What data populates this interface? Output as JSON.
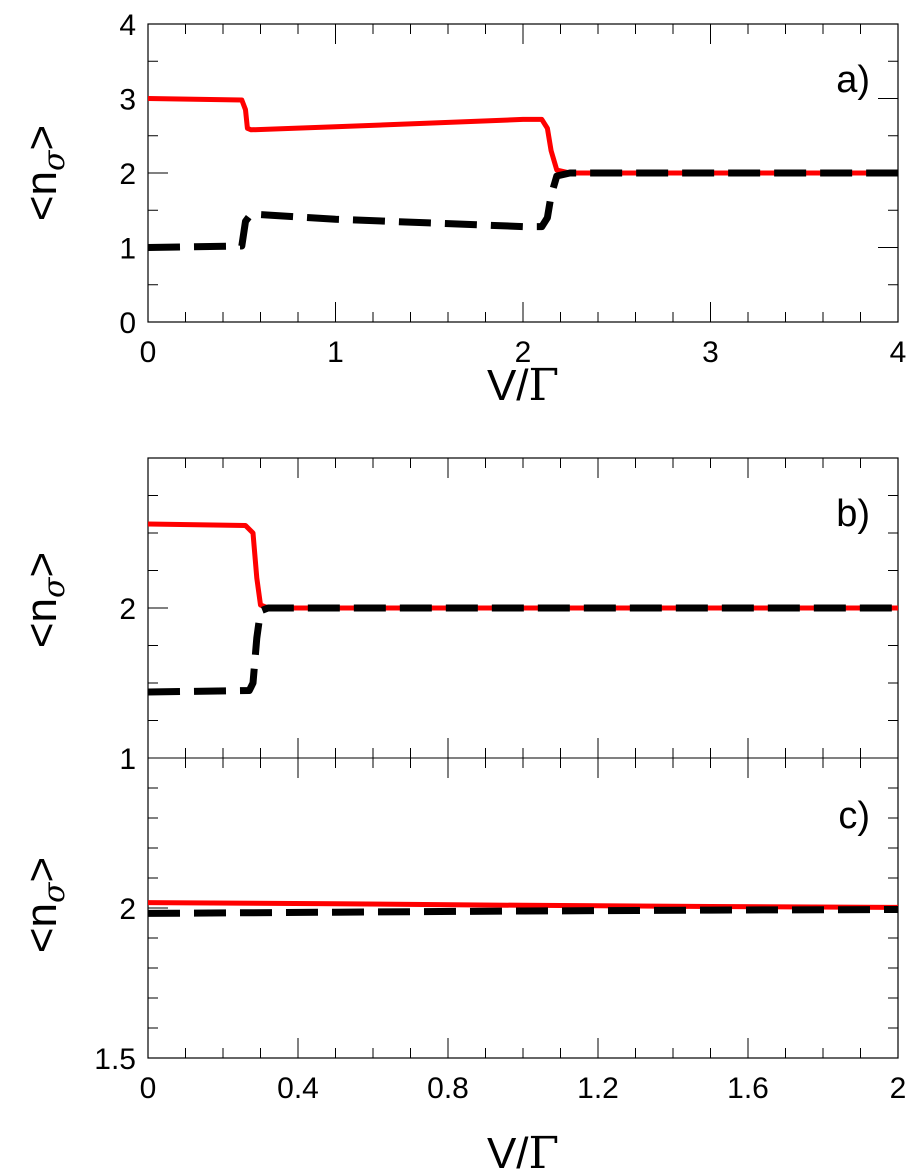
{
  "chart_data": [
    {
      "panel": "a",
      "type": "line",
      "panel_label": "a)",
      "xlabel": "V/",
      "xlabel_symbol": "Γ",
      "ylabel": "<n>",
      "ylabel_subscript": "σ",
      "xlim": [
        0,
        4
      ],
      "ylim": [
        0,
        4
      ],
      "xticks": [
        "0",
        "1",
        "2",
        "3",
        "4"
      ],
      "yticks": [
        "0",
        "1",
        "2",
        "3",
        "4"
      ],
      "series": [
        {
          "style": "solid",
          "color": "#ff0000",
          "x": [
            0,
            0.5,
            0.52,
            0.53,
            0.55,
            1.0,
            1.5,
            2.0,
            2.1,
            2.13,
            2.15,
            2.18,
            2.25,
            3.0,
            4.0
          ],
          "y": [
            3.0,
            2.98,
            2.85,
            2.6,
            2.58,
            2.62,
            2.67,
            2.72,
            2.72,
            2.6,
            2.3,
            2.04,
            2.0,
            2.0,
            2.0
          ]
        },
        {
          "style": "dashed",
          "color": "#000000",
          "x": [
            0,
            0.5,
            0.52,
            0.55,
            1.0,
            1.5,
            2.0,
            2.1,
            2.13,
            2.15,
            2.18,
            2.25,
            3.0,
            4.0
          ],
          "y": [
            1.0,
            1.02,
            1.35,
            1.45,
            1.38,
            1.33,
            1.28,
            1.28,
            1.4,
            1.7,
            1.96,
            2.0,
            2.0,
            2.0
          ]
        }
      ]
    },
    {
      "panel": "b",
      "type": "line",
      "panel_label": "b)",
      "ylabel": "<n>",
      "ylabel_subscript": "σ",
      "xlim": [
        0,
        2
      ],
      "ylim": [
        1,
        3
      ],
      "yticks": [
        "1",
        "2"
      ],
      "series": [
        {
          "style": "solid",
          "color": "#ff0000",
          "x": [
            0,
            0.26,
            0.28,
            0.29,
            0.3,
            0.32,
            0.5,
            1.0,
            1.5,
            2.0
          ],
          "y": [
            2.56,
            2.55,
            2.5,
            2.2,
            2.02,
            2.0,
            2.0,
            2.0,
            2.0,
            2.0
          ]
        },
        {
          "style": "dashed",
          "color": "#000000",
          "x": [
            0,
            0.27,
            0.28,
            0.29,
            0.3,
            0.32,
            0.5,
            1.0,
            1.5,
            2.0
          ],
          "y": [
            1.44,
            1.45,
            1.5,
            1.8,
            1.98,
            2.0,
            2.0,
            2.0,
            2.0,
            2.0
          ]
        }
      ]
    },
    {
      "panel": "c",
      "type": "line",
      "panel_label": "c)",
      "xlabel": "V/",
      "xlabel_symbol": "Γ",
      "ylabel": "<n>",
      "ylabel_subscript": "σ",
      "xlim": [
        0,
        2
      ],
      "ylim": [
        1.5,
        2.5
      ],
      "xticks": [
        "0",
        "0.4",
        "0.8",
        "1.2",
        "1.6",
        "2"
      ],
      "yticks": [
        "1.5",
        "2"
      ],
      "series": [
        {
          "style": "solid",
          "color": "#ff0000",
          "x": [
            0,
            0.5,
            1.0,
            1.5,
            2.0
          ],
          "y": [
            2.018,
            2.014,
            2.009,
            2.005,
            2.002
          ]
        },
        {
          "style": "dashed",
          "color": "#000000",
          "x": [
            0,
            0.5,
            1.0,
            1.5,
            2.0
          ],
          "y": [
            1.982,
            1.986,
            1.99,
            1.993,
            1.995
          ]
        }
      ]
    }
  ]
}
